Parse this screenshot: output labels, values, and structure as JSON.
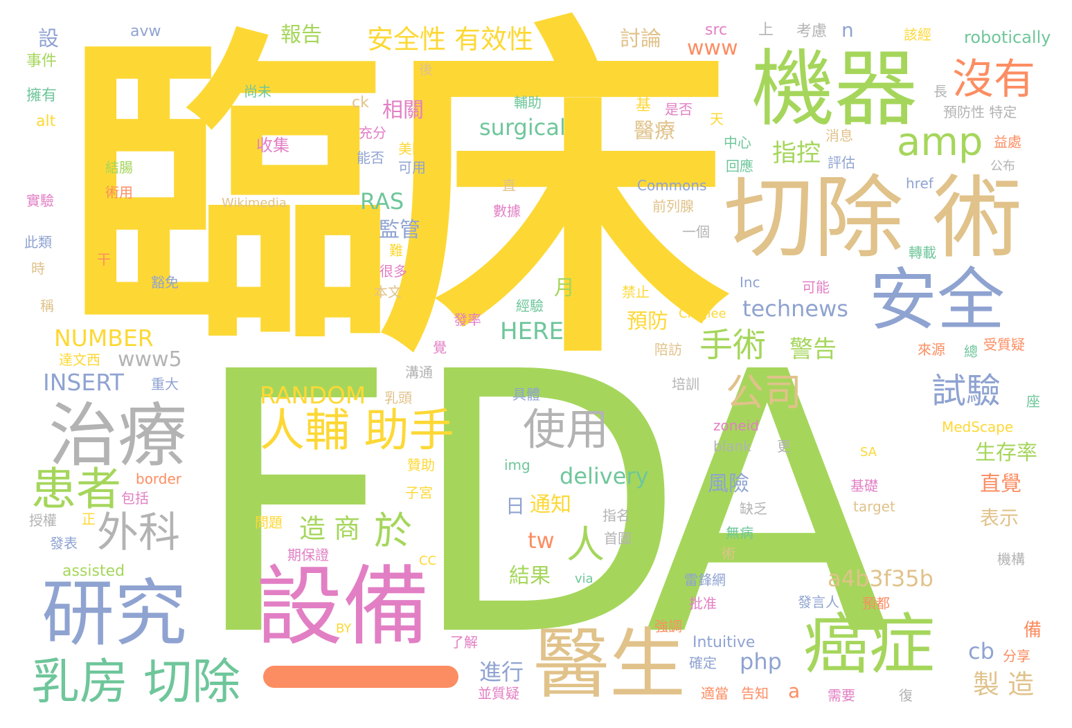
{
  "palette": {
    "yellow": "#fdd835",
    "green": "#a5d65b",
    "tan": "#e0c28a",
    "blue": "#8fa3d1",
    "pink": "#e27fc4",
    "teal": "#6ec69a",
    "orange": "#fc8d62",
    "gray": "#b3b3b3"
  },
  "words": [
    {
      "text": "臨",
      "color": "yellow"
    },
    {
      "text": "床",
      "color": "yellow"
    },
    {
      "text": "F",
      "color": "green"
    },
    {
      "text": "D",
      "color": "green"
    },
    {
      "text": "A",
      "color": "green"
    },
    {
      "text": "機器",
      "color": "green"
    },
    {
      "text": "切除 術",
      "color": "tan"
    },
    {
      "text": "安全",
      "color": "blue"
    },
    {
      "text": "治療",
      "color": "gray"
    },
    {
      "text": "研究",
      "color": "blue"
    },
    {
      "text": "設備",
      "color": "pink"
    },
    {
      "text": "醫生",
      "color": "tan"
    },
    {
      "text": "癌症",
      "color": "green"
    },
    {
      "text": "乳房 切除",
      "color": "teal"
    },
    {
      "text": "人輔 助手",
      "color": "yellow"
    },
    {
      "text": "患者",
      "color": "green"
    },
    {
      "text": "外科",
      "color": "gray"
    },
    {
      "text": "使用",
      "color": "gray"
    },
    {
      "text": "沒有",
      "color": "orange"
    },
    {
      "text": "amp",
      "color": "green"
    },
    {
      "text": "安全性 有效性",
      "color": "yellow"
    },
    {
      "text": "公司",
      "color": "tan"
    },
    {
      "text": "手術",
      "color": "green"
    },
    {
      "text": "試驗",
      "color": "blue"
    },
    {
      "text": "於",
      "color": "green"
    },
    {
      "text": "人",
      "color": "green"
    },
    {
      "text": "報告",
      "color": "green"
    },
    {
      "text": "造 商",
      "color": "green"
    },
    {
      "text": "製 造",
      "color": "tan"
    },
    {
      "text": "進行",
      "color": "blue"
    },
    {
      "text": "警告",
      "color": "green"
    },
    {
      "text": "指控",
      "color": "green"
    },
    {
      "text": "監管",
      "color": "blue"
    },
    {
      "text": "醫療",
      "color": "tan"
    },
    {
      "text": "相關",
      "color": "pink"
    },
    {
      "text": "surgical",
      "color": "teal"
    },
    {
      "text": "technews",
      "color": "blue"
    },
    {
      "text": "RAS",
      "color": "teal"
    },
    {
      "text": "HERE",
      "color": "teal"
    },
    {
      "text": "NUMBER",
      "color": "yellow"
    },
    {
      "text": "INSERT",
      "color": "blue"
    },
    {
      "text": "RANDOM",
      "color": "yellow"
    },
    {
      "text": "www5",
      "color": "gray"
    },
    {
      "text": "www",
      "color": "orange"
    },
    {
      "text": "delivery",
      "color": "teal"
    },
    {
      "text": "a4b3f35b",
      "color": "tan"
    },
    {
      "text": "cb",
      "color": "blue"
    },
    {
      "text": "php",
      "color": "blue"
    },
    {
      "text": "tw",
      "color": "orange"
    },
    {
      "text": "a",
      "color": "orange"
    },
    {
      "text": "討論",
      "color": "tan"
    },
    {
      "text": "生存率",
      "color": "green"
    },
    {
      "text": "直覺",
      "color": "orange"
    },
    {
      "text": "表示",
      "color": "tan"
    },
    {
      "text": "風險",
      "color": "blue"
    },
    {
      "text": "預防",
      "color": "yellow"
    },
    {
      "text": "月",
      "color": "green"
    },
    {
      "text": "日",
      "color": "blue"
    },
    {
      "text": "通知",
      "color": "yellow"
    },
    {
      "text": "結果",
      "color": "green"
    },
    {
      "text": "收集",
      "color": "pink"
    },
    {
      "text": "設",
      "color": "blue"
    },
    {
      "text": "n",
      "color": "blue"
    },
    {
      "text": "robotically",
      "color": "teal"
    },
    {
      "text": "avw",
      "color": "blue"
    },
    {
      "text": "src",
      "color": "pink"
    },
    {
      "text": "上",
      "color": "gray"
    },
    {
      "text": "考慮",
      "color": "gray"
    },
    {
      "text": "該經",
      "color": "yellow"
    },
    {
      "text": "事件",
      "color": "green"
    },
    {
      "text": "擁有",
      "color": "teal"
    },
    {
      "text": "alt",
      "color": "yellow"
    },
    {
      "text": "後",
      "color": "tan"
    },
    {
      "text": "尚未",
      "color": "teal"
    },
    {
      "text": "ck",
      "color": "tan"
    },
    {
      "text": "輔助",
      "color": "teal"
    },
    {
      "text": "基",
      "color": "yellow"
    },
    {
      "text": "是否",
      "color": "pink"
    },
    {
      "text": "天",
      "color": "yellow"
    },
    {
      "text": "長",
      "color": "gray"
    },
    {
      "text": "預防性 特定",
      "color": "gray"
    },
    {
      "text": "充分",
      "color": "pink"
    },
    {
      "text": "美國",
      "color": "yellow"
    },
    {
      "text": "中心",
      "color": "teal"
    },
    {
      "text": "消息",
      "color": "tan"
    },
    {
      "text": "益處",
      "color": "orange"
    },
    {
      "text": "結腸",
      "color": "green"
    },
    {
      "text": "能否",
      "color": "blue"
    },
    {
      "text": "可用",
      "color": "blue"
    },
    {
      "text": "回應",
      "color": "teal"
    },
    {
      "text": "評估",
      "color": "blue"
    },
    {
      "text": "公布",
      "color": "gray"
    },
    {
      "text": "術用",
      "color": "orange"
    },
    {
      "text": "直",
      "color": "tan"
    },
    {
      "text": "Commons",
      "color": "blue"
    },
    {
      "text": "href",
      "color": "blue"
    },
    {
      "text": "實驗",
      "color": "pink"
    },
    {
      "text": "Wikimedia",
      "color": "tan"
    },
    {
      "text": "數據",
      "color": "pink"
    },
    {
      "text": "前列腺",
      "color": "tan"
    },
    {
      "text": "一個",
      "color": "gray"
    },
    {
      "text": "此類",
      "color": "blue"
    },
    {
      "text": "干",
      "color": "orange"
    },
    {
      "text": "難",
      "color": "yellow"
    },
    {
      "text": "轉載",
      "color": "teal"
    },
    {
      "text": "時",
      "color": "tan"
    },
    {
      "text": "很多",
      "color": "pink"
    },
    {
      "text": "豁免",
      "color": "blue"
    },
    {
      "text": "本文",
      "color": "tan"
    },
    {
      "text": "Inc",
      "color": "blue"
    },
    {
      "text": "可能",
      "color": "pink"
    },
    {
      "text": "禁止",
      "color": "yellow"
    },
    {
      "text": "稱",
      "color": "tan"
    },
    {
      "text": "經驗",
      "color": "teal"
    },
    {
      "text": "Cmglee",
      "color": "yellow"
    },
    {
      "text": "發率",
      "color": "pink"
    },
    {
      "text": "覺",
      "color": "pink"
    },
    {
      "text": "陪訪",
      "color": "tan"
    },
    {
      "text": "來源",
      "color": "orange"
    },
    {
      "text": "總",
      "color": "teal"
    },
    {
      "text": "受質疑",
      "color": "orange"
    },
    {
      "text": "達文西",
      "color": "yellow"
    },
    {
      "text": "溝通",
      "color": "gray"
    },
    {
      "text": "重大",
      "color": "blue"
    },
    {
      "text": "具體",
      "color": "blue"
    },
    {
      "text": "培訓",
      "color": "gray"
    },
    {
      "text": "乳頭",
      "color": "tan"
    },
    {
      "text": "座",
      "color": "teal"
    },
    {
      "text": "zoneid",
      "color": "pink"
    },
    {
      "text": "MedScape",
      "color": "yellow"
    },
    {
      "text": "blank",
      "color": "gray"
    },
    {
      "text": "更",
      "color": "gray"
    },
    {
      "text": "SA",
      "color": "yellow"
    },
    {
      "text": "贊助",
      "color": "yellow"
    },
    {
      "text": "img",
      "color": "teal"
    },
    {
      "text": "border",
      "color": "orange"
    },
    {
      "text": "包括",
      "color": "pink"
    },
    {
      "text": "子宮",
      "color": "yellow"
    },
    {
      "text": "基礎",
      "color": "pink"
    },
    {
      "text": "target",
      "color": "tan"
    },
    {
      "text": "授權",
      "color": "gray"
    },
    {
      "text": "正",
      "color": "yellow"
    },
    {
      "text": "指名",
      "color": "gray"
    },
    {
      "text": "缺乏",
      "color": "gray"
    },
    {
      "text": "問題",
      "color": "yellow"
    },
    {
      "text": "首圖",
      "color": "gray"
    },
    {
      "text": "無病",
      "color": "teal"
    },
    {
      "text": "發表",
      "color": "blue"
    },
    {
      "text": "期保證",
      "color": "pink"
    },
    {
      "text": "術",
      "color": "tan"
    },
    {
      "text": "機構",
      "color": "gray"
    },
    {
      "text": "assisted",
      "color": "green"
    },
    {
      "text": "CC",
      "color": "yellow"
    },
    {
      "text": "via",
      "color": "teal"
    },
    {
      "text": "雷鋒網",
      "color": "blue"
    },
    {
      "text": "批准",
      "color": "pink"
    },
    {
      "text": "發言人",
      "color": "blue"
    },
    {
      "text": "預都",
      "color": "orange"
    },
    {
      "text": "BY",
      "color": "yellow"
    },
    {
      "text": "強調",
      "color": "orange"
    },
    {
      "text": "了解",
      "color": "pink"
    },
    {
      "text": "Intuitive",
      "color": "blue"
    },
    {
      "text": "備",
      "color": "orange"
    },
    {
      "text": "確定",
      "color": "blue"
    },
    {
      "text": "分享",
      "color": "orange"
    },
    {
      "text": "並質疑",
      "color": "pink"
    },
    {
      "text": "適當",
      "color": "orange"
    },
    {
      "text": "告知",
      "color": "orange"
    },
    {
      "text": "需要",
      "color": "pink"
    },
    {
      "text": "復",
      "color": "gray"
    }
  ]
}
